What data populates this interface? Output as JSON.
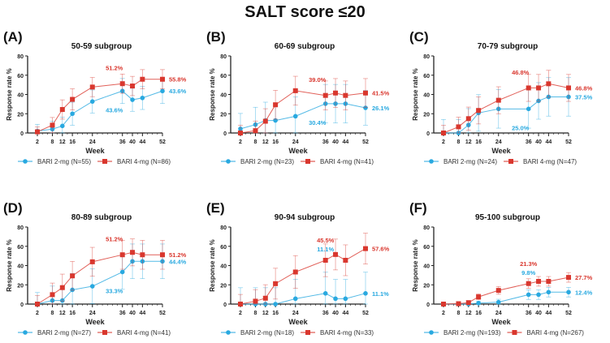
{
  "figure_title": "SALT score ≤20",
  "colors": {
    "bari2": "#29a9e0",
    "bari4": "#d9372e",
    "axis": "#222222"
  },
  "chart_data": [
    {
      "type": "line",
      "panel": "(A)",
      "title": "50-59 subgroup",
      "xlabel": "Week",
      "ylabel": "Response rate %",
      "x": [
        2,
        8,
        12,
        16,
        24,
        36,
        40,
        44,
        52
      ],
      "xticks": [
        "2",
        "8",
        "12",
        "16",
        "24",
        "36",
        "40",
        "44",
        "52"
      ],
      "yticks": [
        "0",
        "20",
        "40",
        "60",
        "80"
      ],
      "ylim": [
        0,
        80
      ],
      "series": [
        {
          "name": "BARI 2-mg (N=55)",
          "key": "bari2",
          "values": [
            2,
            4,
            7.3,
            20,
            32.7,
            43.6,
            34.5,
            36.4,
            43.6
          ],
          "err": [
            7,
            8,
            9,
            12,
            12,
            13,
            12,
            12,
            13
          ]
        },
        {
          "name": "BARI 4-mg (N=86)",
          "key": "bari4",
          "values": [
            1.2,
            8.1,
            24.4,
            34.9,
            47.7,
            51.2,
            48.8,
            55.8,
            55.8
          ],
          "err": [
            5,
            8,
            10,
            11,
            10,
            10,
            10,
            10,
            10
          ]
        }
      ],
      "annotations": [
        {
          "text": "51.2%",
          "series": "bari4",
          "week": 36,
          "place": "above"
        },
        {
          "text": "55.8%",
          "series": "bari4",
          "week": 52,
          "place": "right"
        },
        {
          "text": "43.6%",
          "series": "bari2",
          "week": 36,
          "place": "below"
        },
        {
          "text": "43.6%",
          "series": "bari2",
          "week": 52,
          "place": "right"
        }
      ]
    },
    {
      "type": "line",
      "panel": "(B)",
      "title": "60-69 subgroup",
      "xlabel": "Week",
      "ylabel": "Response rate %",
      "x": [
        2,
        8,
        12,
        16,
        24,
        36,
        40,
        44,
        52
      ],
      "xticks": [
        "2",
        "8",
        "12",
        "16",
        "24",
        "36",
        "40",
        "44",
        "52"
      ],
      "yticks": [
        "0",
        "20",
        "40",
        "60",
        "80"
      ],
      "ylim": [
        0,
        80
      ],
      "series": [
        {
          "name": "BARI 2-mg (N=23)",
          "key": "bari2",
          "values": [
            4.3,
            8.7,
            13,
            13,
            17.4,
            30.4,
            30.4,
            30.4,
            26.1
          ],
          "err": [
            16,
            18,
            19,
            18,
            20,
            20,
            20,
            20,
            18
          ]
        },
        {
          "name": "BARI 4-mg (N=41)",
          "key": "bari4",
          "values": [
            0,
            2.4,
            12.2,
            29.3,
            43.9,
            39,
            41.5,
            39,
            41.5
          ],
          "err": [
            8,
            10,
            13,
            15,
            15,
            15,
            15,
            15,
            15
          ]
        }
      ],
      "annotations": [
        {
          "text": "39.0%",
          "series": "bari4",
          "week": 36,
          "place": "above"
        },
        {
          "text": "41.5%",
          "series": "bari4",
          "week": 52,
          "place": "right"
        },
        {
          "text": "30.4%",
          "series": "bari2",
          "week": 36,
          "place": "below"
        },
        {
          "text": "26.1%",
          "series": "bari2",
          "week": 52,
          "place": "right"
        }
      ]
    },
    {
      "type": "line",
      "panel": "(C)",
      "title": "70-79 subgroup",
      "xlabel": "Week",
      "ylabel": "Response rate %",
      "x": [
        2,
        8,
        12,
        16,
        24,
        36,
        40,
        44,
        52
      ],
      "xticks": [
        "2",
        "8",
        "12",
        "16",
        "24",
        "36",
        "40",
        "44",
        "52"
      ],
      "yticks": [
        "0",
        "20",
        "40",
        "60",
        "80"
      ],
      "ylim": [
        0,
        80
      ],
      "series": [
        {
          "name": "BARI 2-mg (N=24)",
          "key": "bari2",
          "values": [
            0,
            0,
            8.3,
            20.8,
            25,
            25,
            33.3,
            37.5,
            37.5
          ],
          "err": [
            14,
            14,
            17,
            19,
            20,
            20,
            19,
            20,
            20
          ]
        },
        {
          "name": "BARI 4-mg (N=47)",
          "key": "bari4",
          "values": [
            0,
            6.4,
            14.9,
            23.4,
            34,
            46.8,
            46.8,
            51.1,
            46.8
          ],
          "err": [
            8,
            10,
            12,
            14,
            14,
            14,
            14,
            14,
            14
          ]
        }
      ],
      "annotations": [
        {
          "text": "46.8%",
          "series": "bari4",
          "week": 36,
          "place": "above"
        },
        {
          "text": "46.8%",
          "series": "bari4",
          "week": 52,
          "place": "right"
        },
        {
          "text": "25.0%",
          "series": "bari2",
          "week": 36,
          "place": "below"
        },
        {
          "text": "37.5%",
          "series": "bari2",
          "week": 52,
          "place": "right"
        }
      ]
    },
    {
      "type": "line",
      "panel": "(D)",
      "title": "80-89 subgroup",
      "xlabel": "Week",
      "ylabel": "Response rate %",
      "x": [
        2,
        8,
        12,
        16,
        24,
        36,
        40,
        44,
        52
      ],
      "xticks": [
        "2",
        "8",
        "12",
        "16",
        "24",
        "36",
        "40",
        "44",
        "52"
      ],
      "yticks": [
        "0",
        "20",
        "40",
        "60",
        "80"
      ],
      "ylim": [
        0,
        80
      ],
      "series": [
        {
          "name": "BARI 2-mg (N=27)",
          "key": "bari2",
          "values": [
            0,
            3.7,
            3.7,
            14.8,
            18.5,
            33.3,
            44.4,
            44.4,
            44.4
          ],
          "err": [
            12,
            15,
            15,
            17,
            18,
            18,
            18,
            18,
            18
          ]
        },
        {
          "name": "BARI 4-mg (N=41)",
          "key": "bari4",
          "values": [
            0,
            9.8,
            17.1,
            29.3,
            43.9,
            51.2,
            53.7,
            51.2,
            51.2
          ],
          "err": [
            9,
            12,
            14,
            15,
            15,
            15,
            14,
            15,
            15
          ]
        }
      ],
      "annotations": [
        {
          "text": "51.2%",
          "series": "bari4",
          "week": 36,
          "place": "above"
        },
        {
          "text": "51.2%",
          "series": "bari4",
          "week": 52,
          "place": "right"
        },
        {
          "text": "33.3%",
          "series": "bari2",
          "week": 36,
          "place": "below"
        },
        {
          "text": "44.4%",
          "series": "bari2",
          "week": 52,
          "place": "right"
        }
      ]
    },
    {
      "type": "line",
      "panel": "(E)",
      "title": "90-94 subgroup",
      "xlabel": "Week",
      "ylabel": "Response rate %",
      "x": [
        2,
        8,
        12,
        16,
        24,
        36,
        40,
        44,
        52
      ],
      "xticks": [
        "2",
        "8",
        "12",
        "16",
        "24",
        "36",
        "40",
        "44",
        "52"
      ],
      "yticks": [
        "0",
        "20",
        "40",
        "60",
        "80"
      ],
      "ylim": [
        0,
        80
      ],
      "series": [
        {
          "name": "BARI 2-mg (N=18)",
          "key": "bari2",
          "values": [
            0,
            0,
            0,
            0,
            5.6,
            11.1,
            5.6,
            5.6,
            11.1
          ],
          "err": [
            17,
            17,
            17,
            17,
            20,
            22,
            20,
            20,
            22
          ]
        },
        {
          "name": "BARI 4-mg (N=33)",
          "key": "bari4",
          "values": [
            0,
            3,
            6.1,
            21.2,
            33.3,
            45.5,
            51.5,
            45.5,
            57.6
          ],
          "err": [
            10,
            12,
            14,
            16,
            17,
            17,
            16,
            16,
            16
          ]
        }
      ],
      "annotations": [
        {
          "text": "45.5%",
          "series": "bari4",
          "week": 36,
          "place": "top"
        },
        {
          "text": "57.6%",
          "series": "bari4",
          "week": 52,
          "place": "right"
        },
        {
          "text": "11.1%",
          "series": "bari2",
          "week": 36,
          "place": "top2"
        },
        {
          "text": "11.1%",
          "series": "bari2",
          "week": 52,
          "place": "right"
        }
      ]
    },
    {
      "type": "line",
      "panel": "(F)",
      "title": "95-100 subgroup",
      "xlabel": "Week",
      "ylabel": "Response rate %",
      "x": [
        2,
        8,
        12,
        16,
        24,
        36,
        40,
        44,
        52
      ],
      "xticks": [
        "2",
        "8",
        "12",
        "16",
        "24",
        "36",
        "40",
        "44",
        "52"
      ],
      "yticks": [
        "0",
        "20",
        "40",
        "60",
        "80"
      ],
      "ylim": [
        0,
        80
      ],
      "series": [
        {
          "name": "BARI 2-mg (N=193)",
          "key": "bari2",
          "values": [
            0,
            0,
            0,
            1,
            2,
            9.8,
            9.8,
            12.4,
            12.4
          ],
          "err": [
            1,
            1,
            1,
            2,
            3,
            5,
            5,
            5,
            5
          ]
        },
        {
          "name": "BARI 4-mg (N=267)",
          "key": "bari4",
          "values": [
            0,
            0.4,
            1.5,
            7.5,
            14.2,
            21.3,
            23.6,
            23.6,
            27.7
          ],
          "err": [
            1,
            1,
            2,
            3,
            4,
            5,
            5,
            5,
            5
          ]
        }
      ],
      "annotations": [
        {
          "text": "21.3%",
          "series": "bari4",
          "week": 36,
          "place": "top"
        },
        {
          "text": "27.7%",
          "series": "bari4",
          "week": 52,
          "place": "right"
        },
        {
          "text": "9.8%",
          "series": "bari2",
          "week": 36,
          "place": "top2"
        },
        {
          "text": "12.4%",
          "series": "bari2",
          "week": 52,
          "place": "right"
        }
      ]
    }
  ]
}
